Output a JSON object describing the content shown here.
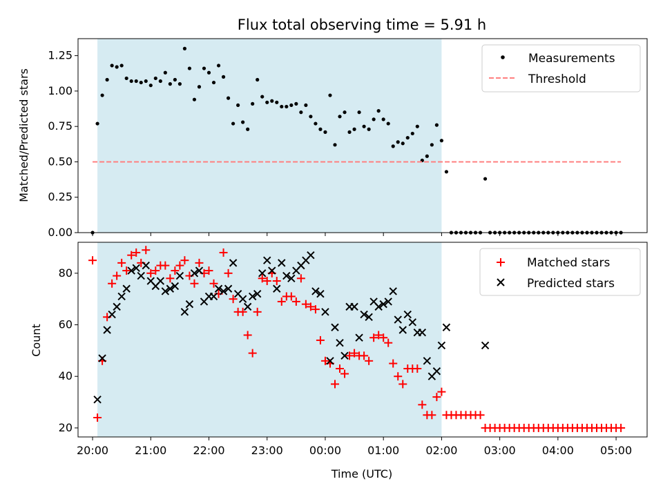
{
  "figure": {
    "title": "Flux total observing time = 5.91 h"
  },
  "chart_data": [
    {
      "type": "scatter",
      "title": "Flux total observing time = 5.91 h",
      "xlabel": "",
      "ylabel": "Matched/Predicted stars",
      "xlim": [
        "19:45",
        "05:32"
      ],
      "ylim": [
        0,
        1.37
      ],
      "yticks": [
        "0.00",
        "0.25",
        "0.50",
        "0.75",
        "1.00",
        "1.25"
      ],
      "grid": false,
      "legend_position": "top-right",
      "shaded_span": [
        "20:05",
        "02:00"
      ],
      "series": [
        {
          "name": "Measurements",
          "marker": "dot",
          "color": "#000000",
          "x": [
            "20:00",
            "20:05",
            "20:10",
            "20:15",
            "20:20",
            "20:25",
            "20:30",
            "20:35",
            "20:40",
            "20:45",
            "20:50",
            "20:55",
            "21:00",
            "21:05",
            "21:10",
            "21:15",
            "21:20",
            "21:25",
            "21:30",
            "21:35",
            "21:40",
            "21:45",
            "21:50",
            "21:55",
            "22:00",
            "22:05",
            "22:10",
            "22:15",
            "22:20",
            "22:25",
            "22:30",
            "22:35",
            "22:40",
            "22:45",
            "22:50",
            "22:55",
            "23:00",
            "23:05",
            "23:10",
            "23:15",
            "23:20",
            "23:25",
            "23:30",
            "23:35",
            "23:40",
            "23:45",
            "23:50",
            "23:55",
            "00:00",
            "00:05",
            "00:10",
            "00:15",
            "00:20",
            "00:25",
            "00:30",
            "00:35",
            "00:40",
            "00:45",
            "00:50",
            "00:55",
            "01:00",
            "01:05",
            "01:10",
            "01:15",
            "01:20",
            "01:25",
            "01:30",
            "01:35",
            "01:40",
            "01:45",
            "01:50",
            "01:55",
            "02:00",
            "02:05",
            "02:10",
            "02:15",
            "02:20",
            "02:25",
            "02:30",
            "02:35",
            "02:40",
            "02:45",
            "02:50",
            "02:55",
            "03:00",
            "03:05",
            "03:10",
            "03:15",
            "03:20",
            "03:25",
            "03:30",
            "03:35",
            "03:40",
            "03:45",
            "03:50",
            "03:55",
            "04:00",
            "04:05",
            "04:10",
            "04:15",
            "04:20",
            "04:25",
            "04:30",
            "04:35",
            "04:40",
            "04:45",
            "04:50",
            "04:55",
            "05:00",
            "05:05"
          ],
          "y": [
            0.0,
            0.77,
            0.97,
            1.08,
            1.18,
            1.17,
            1.18,
            1.09,
            1.07,
            1.07,
            1.06,
            1.07,
            1.04,
            1.09,
            1.07,
            1.13,
            1.05,
            1.08,
            1.05,
            1.3,
            1.16,
            0.94,
            1.03,
            1.16,
            1.13,
            1.06,
            1.18,
            1.1,
            0.95,
            0.77,
            0.9,
            0.78,
            0.73,
            0.91,
            1.08,
            0.96,
            0.92,
            0.93,
            0.92,
            0.89,
            0.89,
            0.9,
            0.91,
            0.85,
            0.9,
            0.82,
            0.77,
            0.73,
            0.71,
            0.97,
            0.62,
            0.82,
            0.85,
            0.71,
            0.73,
            0.85,
            0.75,
            0.73,
            0.8,
            0.86,
            0.8,
            0.77,
            0.61,
            0.64,
            0.63,
            0.67,
            0.7,
            0.75,
            0.51,
            0.54,
            0.62,
            0.76,
            0.65,
            0.43,
            0.0,
            0.0,
            0.0,
            0.0,
            0.0,
            0.0,
            0.0,
            0.38,
            0.0,
            0.0,
            0.0,
            0.0,
            0.0,
            0.0,
            0.0,
            0.0,
            0.0,
            0.0,
            0.0,
            0.0,
            0.0,
            0.0,
            0.0,
            0.0,
            0.0,
            0.0,
            0.0,
            0.0,
            0.0,
            0.0,
            0.0,
            0.0,
            0.0,
            0.0,
            0.0,
            0.0
          ]
        },
        {
          "name": "Threshold",
          "marker": "dashed-line",
          "color": "#ff7f7f",
          "x": [
            "20:00",
            "05:05"
          ],
          "y": [
            0.5,
            0.5
          ]
        }
      ]
    },
    {
      "type": "scatter",
      "xlabel": "Time (UTC)",
      "ylabel": "Count",
      "xlim": [
        "19:45",
        "05:32"
      ],
      "ylim": [
        16.5,
        92
      ],
      "xticks": [
        "20:00",
        "21:00",
        "22:00",
        "23:00",
        "00:00",
        "01:00",
        "02:00",
        "03:00",
        "04:00",
        "05:00"
      ],
      "yticks": [
        "20",
        "40",
        "60",
        "80"
      ],
      "grid": false,
      "legend_position": "top-right",
      "shaded_span": [
        "20:05",
        "02:00"
      ],
      "series": [
        {
          "name": "Matched stars",
          "marker": "plus",
          "color": "#ff0000",
          "x": [
            "20:00",
            "20:05",
            "20:10",
            "20:15",
            "20:20",
            "20:25",
            "20:30",
            "20:35",
            "20:40",
            "20:45",
            "20:50",
            "20:55",
            "21:00",
            "21:05",
            "21:10",
            "21:15",
            "21:20",
            "21:25",
            "21:30",
            "21:35",
            "21:40",
            "21:45",
            "21:50",
            "21:55",
            "22:00",
            "22:05",
            "22:10",
            "22:15",
            "22:20",
            "22:25",
            "22:30",
            "22:35",
            "22:40",
            "22:45",
            "22:50",
            "22:55",
            "23:00",
            "23:05",
            "23:10",
            "23:15",
            "23:20",
            "23:25",
            "23:30",
            "23:35",
            "23:40",
            "23:45",
            "23:50",
            "23:55",
            "00:00",
            "00:05",
            "00:10",
            "00:15",
            "00:20",
            "00:25",
            "00:30",
            "00:35",
            "00:40",
            "00:45",
            "00:50",
            "00:55",
            "01:00",
            "01:05",
            "01:10",
            "01:15",
            "01:20",
            "01:25",
            "01:30",
            "01:35",
            "01:40",
            "01:45",
            "01:50",
            "01:55",
            "02:00",
            "02:05",
            "02:10",
            "02:15",
            "02:20",
            "02:25",
            "02:30",
            "02:35",
            "02:40",
            "02:45",
            "02:50",
            "02:55",
            "03:00",
            "03:05",
            "03:10",
            "03:15",
            "03:20",
            "03:25",
            "03:30",
            "03:35",
            "03:40",
            "03:45",
            "03:50",
            "03:55",
            "04:00",
            "04:05",
            "04:10",
            "04:15",
            "04:20",
            "04:25",
            "04:30",
            "04:35",
            "04:40",
            "04:45",
            "04:50",
            "04:55",
            "05:00",
            "05:05"
          ],
          "y": [
            85,
            24,
            46,
            63,
            76,
            79,
            84,
            81,
            87,
            88,
            84,
            89,
            80,
            81,
            83,
            83,
            78,
            81,
            83,
            85,
            79,
            76,
            84,
            80,
            81,
            76,
            72,
            88,
            80,
            70,
            65,
            65,
            56,
            49,
            65,
            78,
            77,
            80,
            77,
            69,
            71,
            71,
            69,
            78,
            68,
            67,
            66,
            54,
            46,
            45,
            37,
            43,
            41,
            48,
            49,
            48,
            48,
            46,
            55,
            56,
            55,
            53,
            45,
            40,
            37,
            43,
            43,
            43,
            29,
            25,
            25,
            32,
            34,
            25,
            25,
            25,
            25,
            25,
            25,
            25,
            25,
            20,
            20,
            20,
            20,
            20,
            20,
            20,
            20,
            20,
            20,
            20,
            20,
            20,
            20,
            20,
            20,
            20,
            20,
            20,
            20,
            20,
            20,
            20,
            20,
            20,
            20,
            20,
            20,
            20
          ]
        },
        {
          "name": "Predicted stars",
          "marker": "x",
          "color": "#000000",
          "x": [
            "20:05",
            "20:10",
            "20:15",
            "20:20",
            "20:25",
            "20:30",
            "20:35",
            "20:40",
            "20:45",
            "20:50",
            "20:55",
            "21:00",
            "21:05",
            "21:10",
            "21:15",
            "21:20",
            "21:25",
            "21:30",
            "21:35",
            "21:40",
            "21:45",
            "21:50",
            "21:55",
            "22:00",
            "22:05",
            "22:10",
            "22:15",
            "22:20",
            "22:25",
            "22:30",
            "22:35",
            "22:40",
            "22:45",
            "22:50",
            "22:55",
            "23:00",
            "23:05",
            "23:10",
            "23:15",
            "23:20",
            "23:25",
            "23:30",
            "23:35",
            "23:40",
            "23:45",
            "23:50",
            "23:55",
            "00:00",
            "00:05",
            "00:10",
            "00:15",
            "00:20",
            "00:25",
            "00:30",
            "00:35",
            "00:40",
            "00:45",
            "00:50",
            "00:55",
            "01:00",
            "01:05",
            "01:10",
            "01:15",
            "01:20",
            "01:25",
            "01:30",
            "01:35",
            "01:40",
            "01:45",
            "01:50",
            "01:55",
            "02:00",
            "02:05",
            "02:45"
          ],
          "y": [
            31,
            47,
            58,
            64,
            67,
            71,
            74,
            81,
            82,
            79,
            83,
            77,
            75,
            77,
            73,
            74,
            75,
            79,
            65,
            68,
            80,
            81,
            69,
            71,
            71,
            74,
            73,
            74,
            84,
            72,
            70,
            67,
            71,
            72,
            80,
            85,
            81,
            74,
            84,
            79,
            78,
            81,
            83,
            85,
            87,
            73,
            72,
            65,
            46,
            59,
            53,
            48,
            67,
            67,
            55,
            64,
            63,
            69,
            67,
            68,
            69,
            73,
            62,
            58,
            64,
            61,
            57,
            57,
            46,
            40,
            42,
            52,
            59,
            52
          ]
        }
      ]
    }
  ]
}
